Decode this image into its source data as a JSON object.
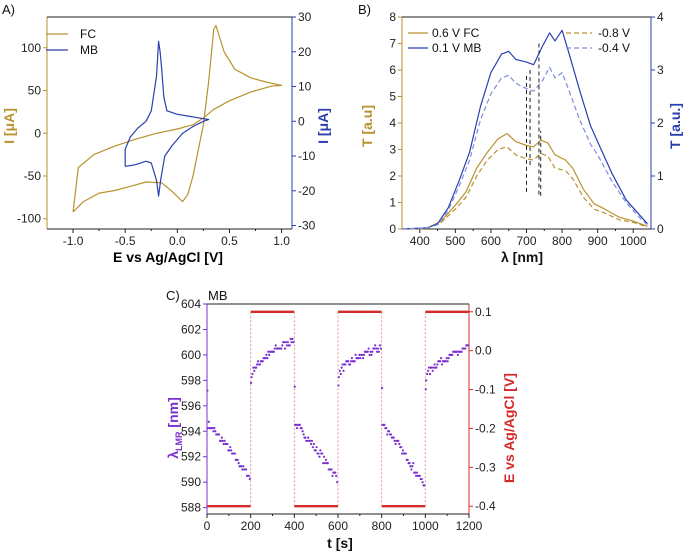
{
  "colors": {
    "gold": "#B8922E",
    "blue": "#2A3FB0",
    "lightblue": "#7C8CE0",
    "purple": "#7B2FD0",
    "red": "#D42A2A",
    "pink": "#E08080",
    "black": "#222222"
  },
  "chart_data": [
    {
      "panel_label": "A)",
      "type": "line",
      "xlabel": "E vs Ag/AgCl [V]",
      "ylabel": "I [μA]",
      "ylabel_right": "I [μA]",
      "xlim": [
        -1.25,
        1.1
      ],
      "ylim": [
        -112,
        136
      ],
      "ylim_right": [
        -31,
        30
      ],
      "xticks": [
        -1.0,
        -0.5,
        0.0,
        0.5,
        1.0
      ],
      "xticklabels": [
        "-1.0",
        "-0.5",
        "0.0",
        "0.5",
        "1.0"
      ],
      "yticks": [
        -100,
        -50,
        0,
        50,
        100
      ],
      "yticklabels": [
        "-100",
        "-50",
        "0",
        "50",
        "100"
      ],
      "yticks_right": [
        -30,
        -20,
        -10,
        0,
        10,
        20,
        30
      ],
      "yticklabels_right": [
        "-30",
        "-20",
        "-10",
        "0",
        "10",
        "20",
        "30"
      ],
      "legend": [
        "FC",
        "MB"
      ],
      "legend_position": "top-left",
      "series": [
        {
          "name": "FC",
          "axis": "left",
          "color_key": "gold",
          "points": [
            [
              -1.0,
              -92
            ],
            [
              -0.9,
              -80
            ],
            [
              -0.75,
              -70
            ],
            [
              -0.6,
              -67
            ],
            [
              -0.45,
              -62
            ],
            [
              -0.3,
              -57
            ],
            [
              -0.15,
              -58
            ],
            [
              -0.05,
              -68
            ],
            [
              0.05,
              -80
            ],
            [
              0.1,
              -72
            ],
            [
              0.15,
              -50
            ],
            [
              0.2,
              -20
            ],
            [
              0.25,
              10
            ],
            [
              0.3,
              60
            ],
            [
              0.35,
              122
            ],
            [
              0.37,
              126
            ],
            [
              0.45,
              95
            ],
            [
              0.55,
              75
            ],
            [
              0.7,
              65
            ],
            [
              0.85,
              60
            ],
            [
              1.0,
              56
            ],
            [
              0.9,
              55
            ],
            [
              0.7,
              48
            ],
            [
              0.5,
              38
            ],
            [
              0.35,
              28
            ],
            [
              0.25,
              18
            ],
            [
              0.15,
              10
            ],
            [
              0.0,
              5
            ],
            [
              -0.2,
              0
            ],
            [
              -0.4,
              -7
            ],
            [
              -0.6,
              -15
            ],
            [
              -0.8,
              -25
            ],
            [
              -0.95,
              -40
            ],
            [
              -1.0,
              -92
            ]
          ]
        },
        {
          "name": "MB",
          "axis": "right",
          "color_key": "blue",
          "points": [
            [
              -0.5,
              -13
            ],
            [
              -0.4,
              -12.5
            ],
            [
              -0.3,
              -11.5
            ],
            [
              -0.25,
              -12
            ],
            [
              -0.2,
              -17
            ],
            [
              -0.18,
              -21.5
            ],
            [
              -0.16,
              -17
            ],
            [
              -0.12,
              -10
            ],
            [
              -0.05,
              -7
            ],
            [
              0.05,
              -3.5
            ],
            [
              0.15,
              -1.5
            ],
            [
              0.25,
              0
            ],
            [
              0.3,
              0.5
            ],
            [
              0.2,
              1
            ],
            [
              0.1,
              1.5
            ],
            [
              0.0,
              2
            ],
            [
              -0.1,
              3
            ],
            [
              -0.13,
              7
            ],
            [
              -0.15,
              15
            ],
            [
              -0.165,
              20
            ],
            [
              -0.18,
              23
            ],
            [
              -0.2,
              13
            ],
            [
              -0.25,
              3
            ],
            [
              -0.3,
              0
            ],
            [
              -0.38,
              -2
            ],
            [
              -0.45,
              -4.5
            ],
            [
              -0.5,
              -8
            ],
            [
              -0.5,
              -13
            ]
          ]
        }
      ]
    },
    {
      "panel_label": "B)",
      "type": "line",
      "xlabel": "λ [nm]",
      "ylabel": "T [a.u]",
      "ylabel_right": "T [a.u.]",
      "xlim": [
        350,
        1050
      ],
      "ylim": [
        0,
        8
      ],
      "ylim_right": [
        0,
        4
      ],
      "xticks": [
        400,
        500,
        600,
        700,
        800,
        900,
        1000
      ],
      "xticklabels": [
        "400",
        "500",
        "600",
        "700",
        "800",
        "900",
        "1000"
      ],
      "yticks": [
        0,
        1,
        2,
        3,
        4,
        5,
        6,
        7,
        8
      ],
      "yticklabels": [
        "0",
        "1",
        "2",
        "3",
        "4",
        "5",
        "6",
        "7",
        "8"
      ],
      "yticks_right": [
        0,
        1,
        2,
        3,
        4
      ],
      "yticklabels_right": [
        "0",
        "1",
        "2",
        "3",
        "4"
      ],
      "legend": [
        "0.6 V FC",
        "0.1 V MB",
        "-0.8 V",
        "-0.4 V"
      ],
      "legend_position": "top",
      "markers": [
        [
          710,
          6.0,
          2.3
        ],
        [
          740,
          1.25,
          3.7
        ],
        [
          700,
          1.4,
          5.8
        ],
        [
          735,
          7.0,
          1.3
        ]
      ],
      "series": [
        {
          "name": "0.6 V FC",
          "axis": "left",
          "color_key": "gold",
          "dash": false,
          "points": [
            [
              350,
              0
            ],
            [
              420,
              0.02
            ],
            [
              460,
              0.3
            ],
            [
              500,
              0.9
            ],
            [
              530,
              1.4
            ],
            [
              560,
              2.3
            ],
            [
              590,
              2.9
            ],
            [
              620,
              3.4
            ],
            [
              645,
              3.6
            ],
            [
              670,
              3.3
            ],
            [
              700,
              3.15
            ],
            [
              720,
              3.1
            ],
            [
              740,
              3.35
            ],
            [
              760,
              3.25
            ],
            [
              780,
              2.8
            ],
            [
              810,
              2.6
            ],
            [
              830,
              2.3
            ],
            [
              860,
              1.5
            ],
            [
              890,
              0.95
            ],
            [
              920,
              0.75
            ],
            [
              960,
              0.45
            ],
            [
              1000,
              0.3
            ],
            [
              1040,
              0.1
            ]
          ]
        },
        {
          "name": "-0.8 V",
          "axis": "left",
          "color_key": "gold",
          "dash": true,
          "points": [
            [
              350,
              0
            ],
            [
              420,
              0.02
            ],
            [
              460,
              0.25
            ],
            [
              500,
              0.75
            ],
            [
              530,
              1.2
            ],
            [
              560,
              2.0
            ],
            [
              590,
              2.6
            ],
            [
              620,
              3.0
            ],
            [
              645,
              3.1
            ],
            [
              670,
              2.8
            ],
            [
              700,
              2.65
            ],
            [
              720,
              2.6
            ],
            [
              740,
              2.85
            ],
            [
              760,
              2.75
            ],
            [
              780,
              2.3
            ],
            [
              810,
              2.2
            ],
            [
              830,
              1.9
            ],
            [
              860,
              1.2
            ],
            [
              890,
              0.75
            ],
            [
              920,
              0.6
            ],
            [
              960,
              0.35
            ],
            [
              1000,
              0.25
            ],
            [
              1040,
              0.08
            ]
          ]
        },
        {
          "name": "0.1 V MB",
          "axis": "right",
          "color_key": "blue",
          "dash": false,
          "points": [
            [
              350,
              0
            ],
            [
              420,
              0.02
            ],
            [
              450,
              0.1
            ],
            [
              480,
              0.4
            ],
            [
              510,
              0.9
            ],
            [
              540,
              1.45
            ],
            [
              570,
              2.3
            ],
            [
              600,
              2.95
            ],
            [
              630,
              3.3
            ],
            [
              650,
              3.35
            ],
            [
              670,
              3.2
            ],
            [
              700,
              3.15
            ],
            [
              720,
              3.1
            ],
            [
              745,
              3.45
            ],
            [
              765,
              3.7
            ],
            [
              780,
              3.55
            ],
            [
              800,
              3.75
            ],
            [
              820,
              3.3
            ],
            [
              850,
              2.6
            ],
            [
              880,
              1.95
            ],
            [
              900,
              1.65
            ],
            [
              940,
              1.05
            ],
            [
              980,
              0.55
            ],
            [
              1020,
              0.25
            ],
            [
              1040,
              0.1
            ]
          ]
        },
        {
          "name": "-0.4 V",
          "axis": "right",
          "color_key": "lightblue",
          "dash": true,
          "points": [
            [
              350,
              0
            ],
            [
              420,
              0.02
            ],
            [
              450,
              0.08
            ],
            [
              480,
              0.35
            ],
            [
              510,
              0.8
            ],
            [
              540,
              1.3
            ],
            [
              570,
              2.05
            ],
            [
              600,
              2.55
            ],
            [
              630,
              2.85
            ],
            [
              650,
              2.9
            ],
            [
              670,
              2.75
            ],
            [
              700,
              2.65
            ],
            [
              720,
              2.6
            ],
            [
              745,
              2.8
            ],
            [
              765,
              3.05
            ],
            [
              780,
              2.85
            ],
            [
              800,
              2.95
            ],
            [
              820,
              2.6
            ],
            [
              850,
              2.05
            ],
            [
              880,
              1.6
            ],
            [
              900,
              1.4
            ],
            [
              940,
              0.9
            ],
            [
              980,
              0.5
            ],
            [
              1020,
              0.2
            ],
            [
              1040,
              0.08
            ]
          ]
        }
      ]
    },
    {
      "panel_label": "C)",
      "type": "scatter",
      "title": "MB",
      "xlabel": "t [s]",
      "ylabel": "λLMR [nm]",
      "ylabel_main": "λ",
      "ylabel_sub": "LMR",
      "ylabel_unit": " [nm]",
      "ylabel_right": "E vs Ag/AgCl [V]",
      "xlim": [
        0,
        1200
      ],
      "ylim": [
        587.5,
        604
      ],
      "ylim_right": [
        -0.42,
        0.12
      ],
      "xticks": [
        0,
        200,
        400,
        600,
        800,
        1000,
        1200
      ],
      "xticklabels": [
        "0",
        "200",
        "400",
        "600",
        "800",
        "1000",
        "1200"
      ],
      "yticks": [
        588,
        590,
        592,
        594,
        596,
        598,
        600,
        602,
        604
      ],
      "yticklabels": [
        "588",
        "590",
        "592",
        "594",
        "596",
        "598",
        "600",
        "602",
        "604"
      ],
      "yticks_right": [
        -0.4,
        -0.3,
        -0.2,
        -0.1,
        0.0,
        0.1
      ],
      "yticklabels_right": [
        "-0.4",
        "-0.3",
        "-0.2",
        "-0.1",
        "0.0",
        "0.1"
      ],
      "potential_steps": [
        [
          0,
          200,
          -0.4
        ],
        [
          200,
          400,
          0.1
        ],
        [
          400,
          600,
          -0.4
        ],
        [
          600,
          800,
          0.1
        ],
        [
          800,
          1000,
          -0.4
        ],
        [
          1000,
          1200,
          0.1
        ]
      ],
      "scatter_segments": [
        {
          "t0": 0,
          "t1": 200,
          "start": 594.5,
          "end": 590.3,
          "drop_first": 597.2,
          "kind": "down"
        },
        {
          "t0": 200,
          "t1": 400,
          "start": 598.3,
          "end": 601.2,
          "drop_first": 597.8,
          "kind": "up"
        },
        {
          "t0": 400,
          "t1": 600,
          "start": 594.5,
          "end": 590.3,
          "drop_first": 597.5,
          "kind": "down"
        },
        {
          "t0": 600,
          "t1": 800,
          "start": 598.4,
          "end": 600.6,
          "drop_first": 597.6,
          "kind": "up"
        },
        {
          "t0": 800,
          "t1": 1000,
          "start": 594.5,
          "end": 589.7,
          "drop_first": 597.4,
          "kind": "down"
        },
        {
          "t0": 1000,
          "t1": 1200,
          "start": 598.3,
          "end": 600.5,
          "drop_first": 597.3,
          "kind": "up"
        }
      ]
    }
  ]
}
